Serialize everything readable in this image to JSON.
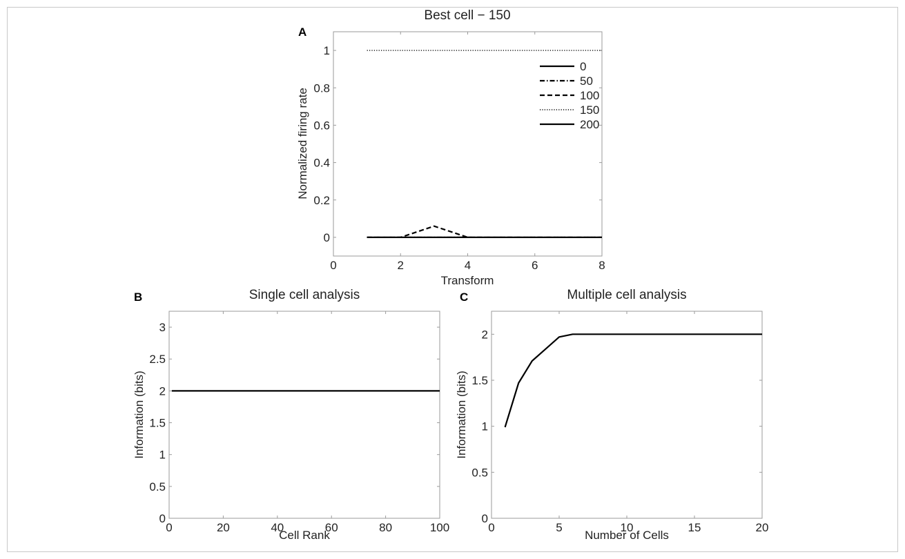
{
  "chart_data": [
    {
      "panel": "A",
      "type": "line",
      "title": "Best cell − 150",
      "xlabel": "Transform",
      "ylabel": "Normalized firing rate",
      "xlim": [
        0,
        8
      ],
      "ylim": [
        -0.1,
        1.1
      ],
      "xticks": [
        0,
        2,
        4,
        6,
        8
      ],
      "yticks": [
        0,
        0.2,
        0.4,
        0.6,
        0.8,
        1
      ],
      "grid": false,
      "legend_position": "top-right",
      "x": [
        1,
        2,
        3,
        4,
        5,
        6,
        7,
        8
      ],
      "series": [
        {
          "name": "0",
          "style": "solid",
          "values": [
            0,
            0,
            0,
            0,
            0,
            0,
            0,
            0
          ]
        },
        {
          "name": "50",
          "style": "dashdot",
          "values": [
            0,
            0,
            0,
            0,
            0,
            0,
            0,
            0
          ]
        },
        {
          "name": "100",
          "style": "dashed",
          "values": [
            0,
            0,
            0.06,
            0,
            0,
            0,
            0,
            0
          ]
        },
        {
          "name": "150",
          "style": "dotted",
          "values": [
            1,
            1,
            1,
            1,
            1,
            1,
            1,
            1
          ]
        },
        {
          "name": "200",
          "style": "solid",
          "values": [
            0,
            0,
            0,
            0,
            0,
            0,
            0,
            0
          ]
        }
      ]
    },
    {
      "panel": "B",
      "type": "line",
      "title": "Single cell analysis",
      "xlabel": "Cell Rank",
      "ylabel": "Information (bits)",
      "xlim": [
        0,
        100
      ],
      "ylim": [
        0,
        3.25
      ],
      "xticks": [
        0,
        20,
        40,
        60,
        80,
        100
      ],
      "yticks": [
        0,
        0.5,
        1,
        1.5,
        2,
        2.5,
        3
      ],
      "grid": false,
      "x": [
        1,
        100
      ],
      "series": [
        {
          "name": "",
          "style": "solid",
          "values": [
            2,
            2
          ]
        }
      ]
    },
    {
      "panel": "C",
      "type": "line",
      "title": "Multiple cell analysis",
      "xlabel": "Number of Cells",
      "ylabel": "Information (bits)",
      "xlim": [
        0,
        20
      ],
      "ylim": [
        0,
        2.25
      ],
      "xticks": [
        0,
        5,
        10,
        15,
        20
      ],
      "yticks": [
        0,
        0.5,
        1,
        1.5,
        2
      ],
      "grid": false,
      "x": [
        1,
        2,
        3,
        4,
        5,
        6,
        7,
        8,
        9,
        10,
        11,
        12,
        13,
        14,
        15,
        16,
        17,
        18,
        19,
        20
      ],
      "series": [
        {
          "name": "",
          "style": "solid",
          "values": [
            0.99,
            1.47,
            1.71,
            1.84,
            1.97,
            2,
            2,
            2,
            2,
            2,
            2,
            2,
            2,
            2,
            2,
            2,
            2,
            2,
            2,
            2
          ]
        }
      ]
    }
  ]
}
